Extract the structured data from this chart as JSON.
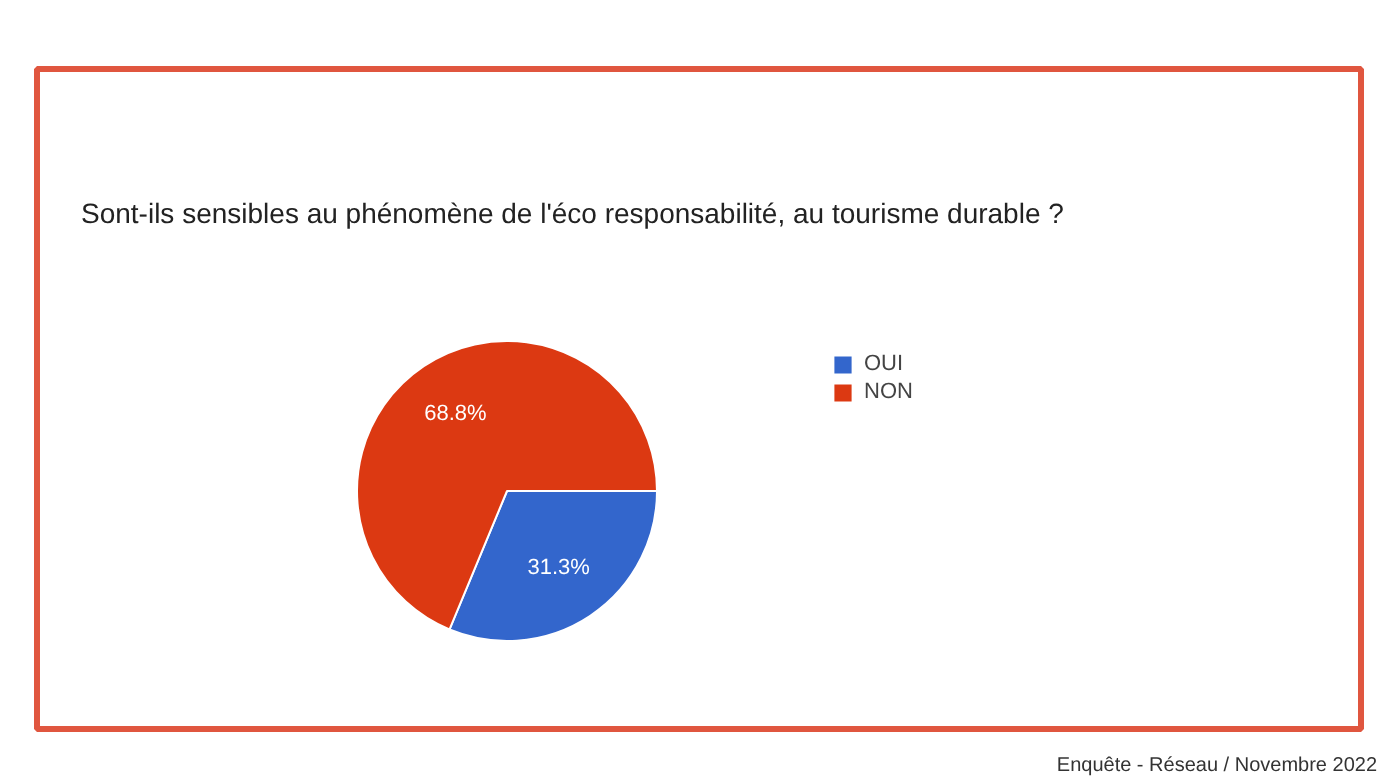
{
  "chart_data": {
    "type": "pie",
    "title": "Sont-ils sensibles au phénomène de l'éco responsabilité, au tourisme durable ?",
    "categories": [
      "OUI",
      "NON"
    ],
    "values": [
      31.3,
      68.8
    ],
    "colors": [
      "#3366cc",
      "#dc3912"
    ],
    "value_labels": [
      "31.3%",
      "68.8%"
    ],
    "legend": "right",
    "annotations": [
      "Enquête - Réseau / Novembre 2022"
    ]
  }
}
